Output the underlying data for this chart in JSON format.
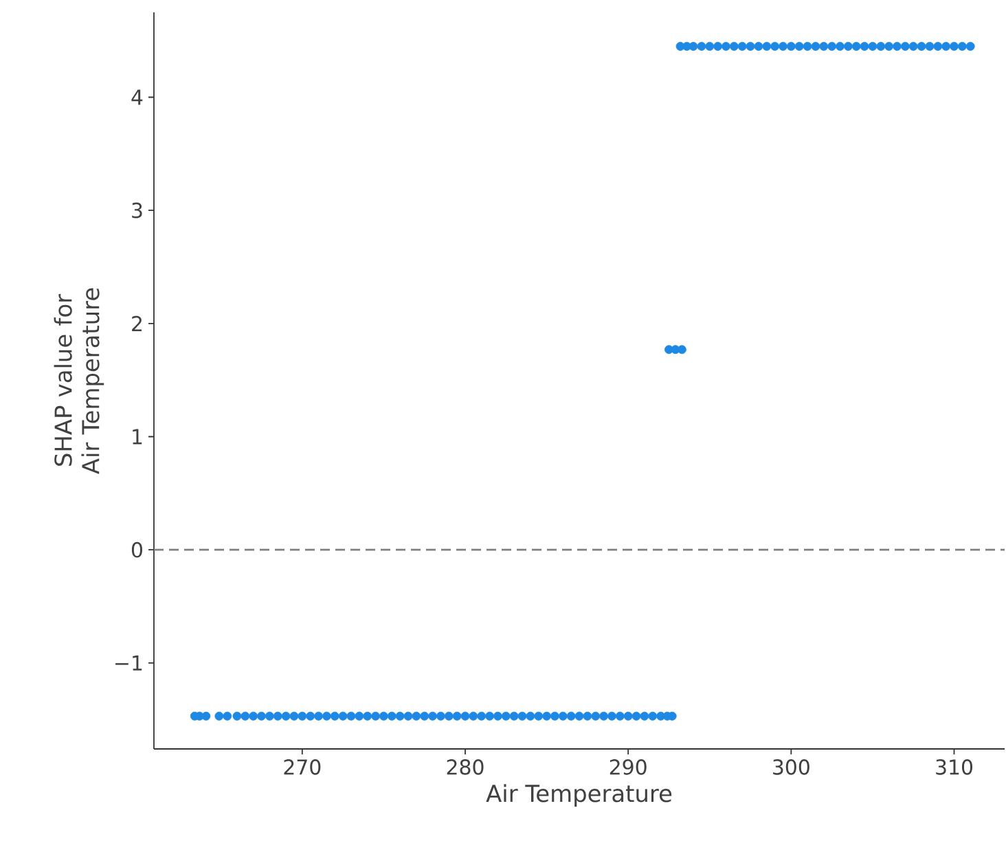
{
  "chart_data": {
    "type": "scatter",
    "xlabel": "Air Temperature",
    "ylabel": "SHAP value for Air Temperature",
    "xlim": [
      260.9,
      313.1
    ],
    "ylim": [
      -1.76,
      4.75
    ],
    "xticks": [
      270,
      280,
      290,
      300,
      310
    ],
    "yticks": [
      {
        "value": -1,
        "label": "−1"
      },
      0,
      1,
      2,
      3,
      4
    ],
    "marker": "circle",
    "ref_lines": [
      {
        "axis": "y",
        "value": 0,
        "color": "#808080",
        "line_style": "dashed"
      }
    ],
    "series": [
      {
        "color": "#1e88e5",
        "x": [
          263.4,
          263.7,
          264.1,
          264.9,
          265.4,
          266,
          266.5,
          267,
          267.5,
          268,
          268.5,
          269,
          269.5,
          270,
          270.5,
          271,
          271.5,
          272,
          272.5,
          273,
          273.5,
          274,
          274.5,
          275,
          275.5,
          276,
          276.5,
          277,
          277.5,
          278,
          278.5,
          279,
          279.5,
          280,
          280.5,
          281,
          281.5,
          282,
          282.5,
          283,
          283.5,
          284,
          284.5,
          285,
          285.5,
          286,
          286.5,
          287,
          287.5,
          288,
          288.5,
          289,
          289.5,
          290,
          290.5,
          291,
          291.5,
          292,
          292.4,
          292.7,
          292.5,
          292.9,
          293.3,
          293.2,
          293.6,
          294,
          294.5,
          295,
          295.5,
          296,
          296.5,
          297,
          297.5,
          298,
          298.5,
          299,
          299.5,
          300,
          300.5,
          301,
          301.5,
          302,
          302.5,
          303,
          303.5,
          304,
          304.5,
          305,
          305.5,
          306,
          306.5,
          307,
          307.5,
          308,
          308.5,
          309,
          309.5,
          310,
          310.5,
          311
        ],
        "values": [
          -1.47,
          -1.47,
          -1.47,
          -1.47,
          -1.47,
          -1.47,
          -1.47,
          -1.47,
          -1.47,
          -1.47,
          -1.47,
          -1.47,
          -1.47,
          -1.47,
          -1.47,
          -1.47,
          -1.47,
          -1.47,
          -1.47,
          -1.47,
          -1.47,
          -1.47,
          -1.47,
          -1.47,
          -1.47,
          -1.47,
          -1.47,
          -1.47,
          -1.47,
          -1.47,
          -1.47,
          -1.47,
          -1.47,
          -1.47,
          -1.47,
          -1.47,
          -1.47,
          -1.47,
          -1.47,
          -1.47,
          -1.47,
          -1.47,
          -1.47,
          -1.47,
          -1.47,
          -1.47,
          -1.47,
          -1.47,
          -1.47,
          -1.47,
          -1.47,
          -1.47,
          -1.47,
          -1.47,
          -1.47,
          -1.47,
          -1.47,
          -1.47,
          -1.47,
          -1.47,
          1.77,
          1.77,
          1.77,
          4.45,
          4.45,
          4.45,
          4.45,
          4.45,
          4.45,
          4.45,
          4.45,
          4.45,
          4.45,
          4.45,
          4.45,
          4.45,
          4.45,
          4.45,
          4.45,
          4.45,
          4.45,
          4.45,
          4.45,
          4.45,
          4.45,
          4.45,
          4.45,
          4.45,
          4.45,
          4.45,
          4.45,
          4.45,
          4.45,
          4.45,
          4.45,
          4.45,
          4.45,
          4.45,
          4.45,
          4.45
        ]
      }
    ]
  }
}
